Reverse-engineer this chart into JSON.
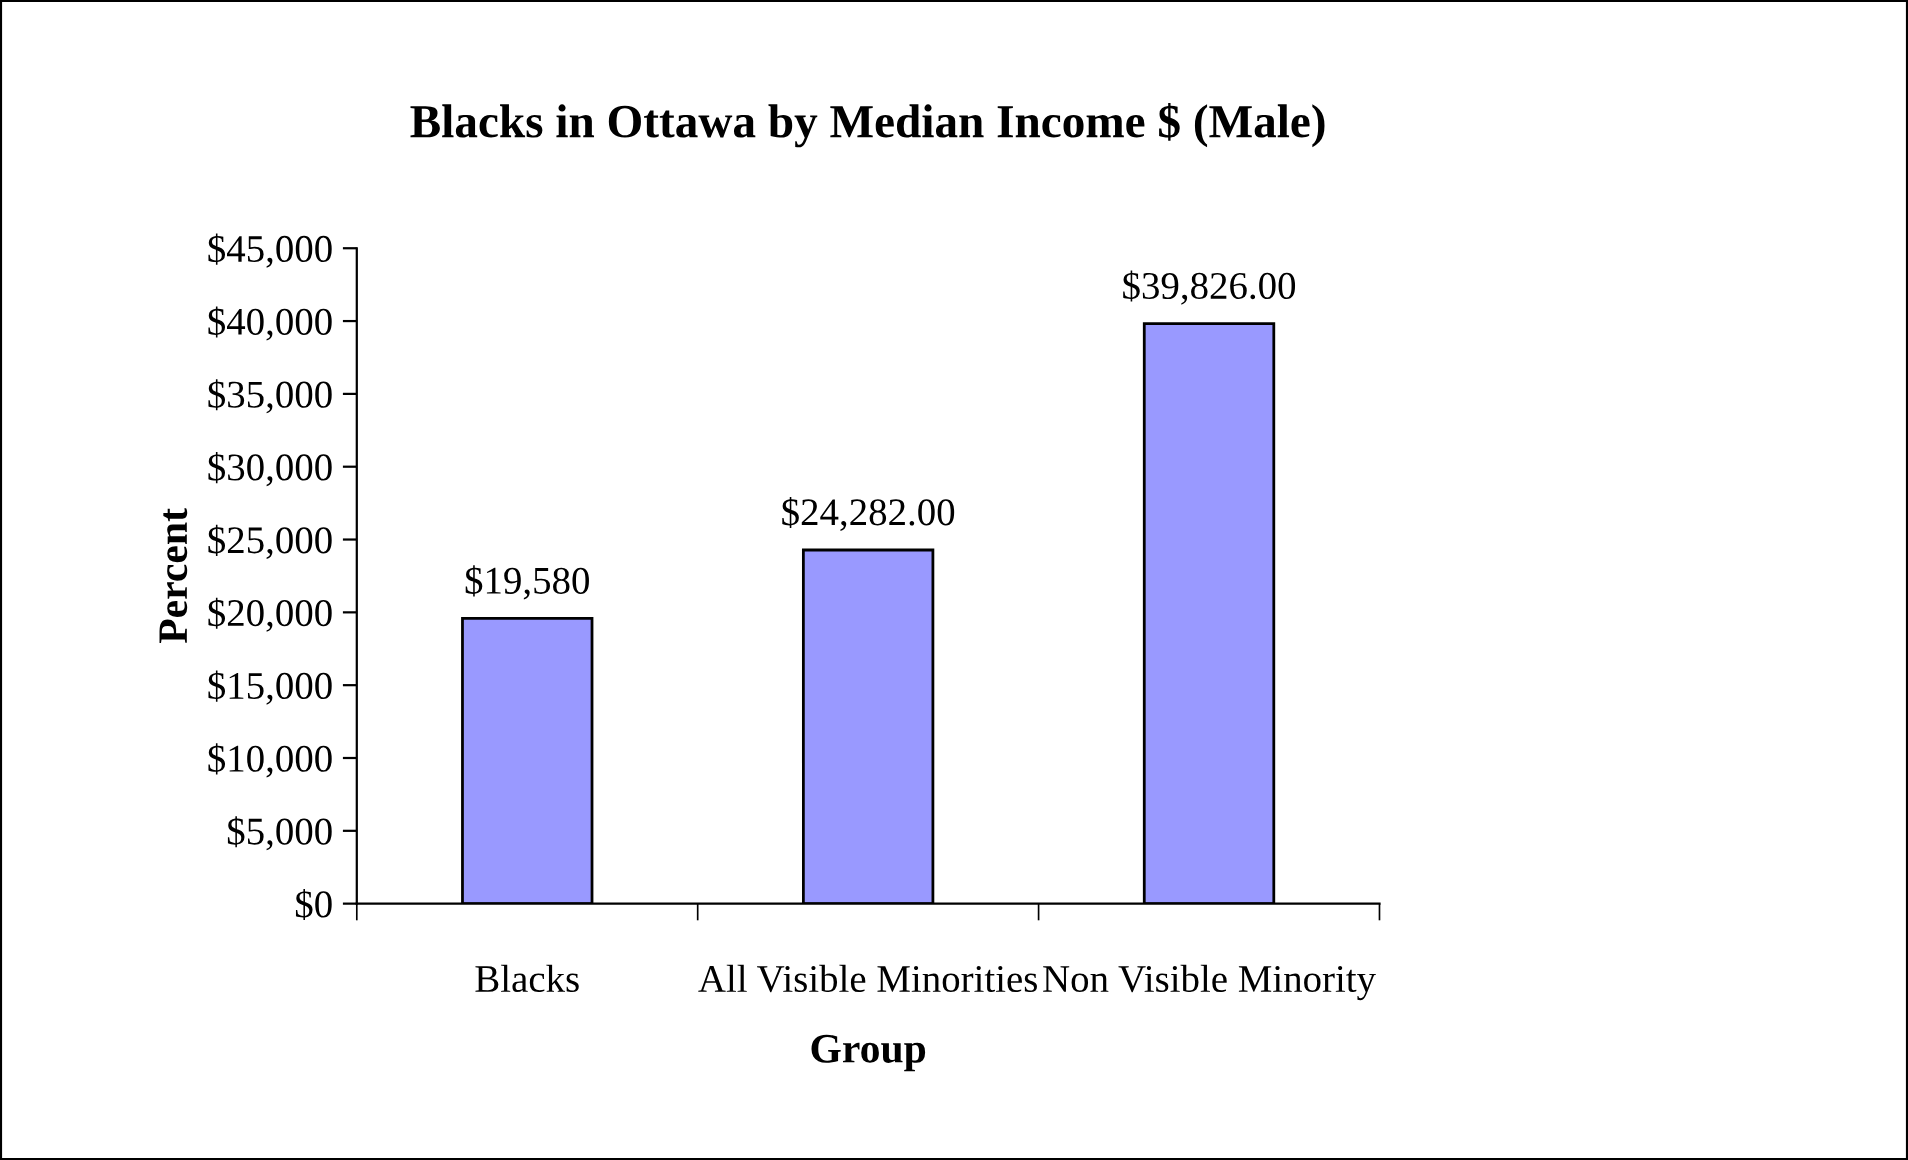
{
  "chart_data": {
    "type": "bar",
    "title": "Blacks in Ottawa by Median Income $ (Male)",
    "xlabel": "Group",
    "ylabel": "Percent",
    "categories": [
      "Blacks",
      "All Visible Minorities",
      "Non Visible Minority"
    ],
    "values": [
      19580,
      24282,
      39826
    ],
    "color": "#9999ff",
    "value_labels": [
      "$19,580",
      "$24,282.00",
      "$39,826.00"
    ],
    "ylim": [
      0,
      45000
    ],
    "yticks": [
      {
        "value": 0,
        "label": "$0"
      },
      {
        "value": 5000,
        "label": "$5,000"
      },
      {
        "value": 10000,
        "label": "$10,000"
      },
      {
        "value": 15000,
        "label": "$15,000"
      },
      {
        "value": 20000,
        "label": "$20,000"
      },
      {
        "value": 25000,
        "label": "$25,000"
      },
      {
        "value": 30000,
        "label": "$30,000"
      },
      {
        "value": 35000,
        "label": "$35,000"
      },
      {
        "value": 40000,
        "label": "$40,000"
      },
      {
        "value": 45000,
        "label": "$45,000"
      }
    ],
    "grid": false,
    "legend": false
  }
}
